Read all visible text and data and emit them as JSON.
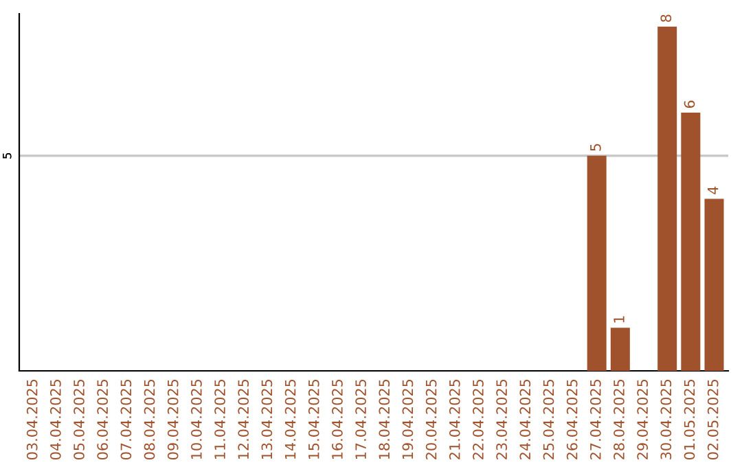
{
  "chart_data": {
    "type": "bar",
    "categories": [
      "03.04.2025",
      "04.04.2025",
      "05.04.2025",
      "06.04.2025",
      "07.04.2025",
      "08.04.2025",
      "09.04.2025",
      "10.04.2025",
      "11.04.2025",
      "12.04.2025",
      "13.04.2025",
      "14.04.2025",
      "15.04.2025",
      "16.04.2025",
      "17.04.2025",
      "18.04.2025",
      "19.04.2025",
      "20.04.2025",
      "21.04.2025",
      "22.04.2025",
      "23.04.2025",
      "24.04.2025",
      "25.04.2025",
      "26.04.2025",
      "27.04.2025",
      "28.04.2025",
      "29.04.2025",
      "30.04.2025",
      "01.05.2025",
      "02.05.2025"
    ],
    "values": [
      null,
      null,
      null,
      null,
      null,
      null,
      null,
      null,
      null,
      null,
      null,
      null,
      null,
      null,
      null,
      null,
      null,
      null,
      null,
      null,
      null,
      null,
      null,
      null,
      5,
      1,
      null,
      8,
      6,
      4
    ],
    "data_labels": true,
    "color": "#a0522d",
    "ylim": [
      0,
      8.3
    ],
    "ref_lines": [
      {
        "axis": "y",
        "value": 5,
        "label": "5",
        "color": "#c8c8c8"
      }
    ],
    "legend": false
  }
}
